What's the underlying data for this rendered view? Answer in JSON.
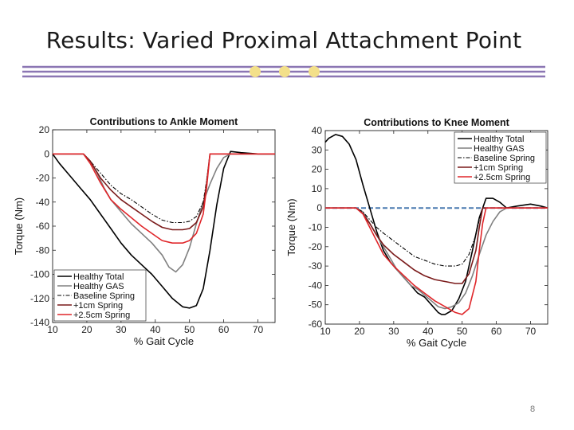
{
  "slide": {
    "title": "Results: Varied Proximal Attachment Point",
    "page_number": "8"
  },
  "colors": {
    "divider_line": "#8b76b3",
    "divider_dot": "#f3e08a",
    "healthy_total": "#000000",
    "healthy_gas": "#808080",
    "baseline_spring": "#000000",
    "spring_1cm": "#7a1a1a",
    "spring_2_5cm": "#e0262a",
    "zero_line": "#4a7ab0"
  },
  "chart_data": [
    {
      "type": "line",
      "title": "Contributions to Ankle Moment",
      "xlabel": "% Gait Cycle",
      "ylabel": "Torque (Nm)",
      "xlim": [
        10,
        75
      ],
      "ylim": [
        -140,
        20
      ],
      "xticks": [
        10,
        20,
        30,
        40,
        50,
        60,
        70
      ],
      "yticks": [
        20,
        0,
        -20,
        -40,
        -60,
        -80,
        -100,
        -120,
        -140
      ],
      "legend_position": "bottom-left",
      "grid": false,
      "series": [
        {
          "name": "Healthy Total",
          "style": "solid",
          "color_key": "healthy_total",
          "points": [
            [
              10,
              0
            ],
            [
              12,
              -8
            ],
            [
              15,
              -18
            ],
            [
              18,
              -28
            ],
            [
              21,
              -38
            ],
            [
              24,
              -50
            ],
            [
              27,
              -62
            ],
            [
              30,
              -74
            ],
            [
              33,
              -84
            ],
            [
              36,
              -92
            ],
            [
              39,
              -100
            ],
            [
              42,
              -110
            ],
            [
              45,
              -120
            ],
            [
              48,
              -127
            ],
            [
              50,
              -128
            ],
            [
              52,
              -126
            ],
            [
              54,
              -112
            ],
            [
              56,
              -80
            ],
            [
              58,
              -42
            ],
            [
              60,
              -12
            ],
            [
              62,
              2
            ],
            [
              65,
              1
            ],
            [
              70,
              0
            ],
            [
              75,
              0
            ]
          ]
        },
        {
          "name": "Healthy GAS",
          "style": "solid",
          "color_key": "healthy_gas",
          "points": [
            [
              10,
              0
            ],
            [
              19,
              0
            ],
            [
              21,
              -6
            ],
            [
              23,
              -16
            ],
            [
              25,
              -28
            ],
            [
              27,
              -38
            ],
            [
              30,
              -48
            ],
            [
              33,
              -58
            ],
            [
              36,
              -66
            ],
            [
              39,
              -74
            ],
            [
              42,
              -84
            ],
            [
              44,
              -94
            ],
            [
              46,
              -98
            ],
            [
              48,
              -92
            ],
            [
              50,
              -78
            ],
            [
              52,
              -58
            ],
            [
              54,
              -40
            ],
            [
              56,
              -25
            ],
            [
              58,
              -12
            ],
            [
              60,
              -3
            ],
            [
              62,
              0
            ],
            [
              75,
              0
            ]
          ]
        },
        {
          "name": "Baseline Spring",
          "style": "dashdot",
          "color_key": "baseline_spring",
          "points": [
            [
              10,
              0
            ],
            [
              19,
              0
            ],
            [
              21,
              -6
            ],
            [
              24,
              -16
            ],
            [
              27,
              -26
            ],
            [
              30,
              -33
            ],
            [
              33,
              -38
            ],
            [
              36,
              -44
            ],
            [
              39,
              -50
            ],
            [
              42,
              -55
            ],
            [
              45,
              -57
            ],
            [
              48,
              -57
            ],
            [
              50,
              -56
            ],
            [
              52,
              -52
            ],
            [
              54,
              -40
            ],
            [
              55,
              -22
            ],
            [
              56,
              0
            ],
            [
              75,
              0
            ]
          ]
        },
        {
          "name": "+1cm Spring",
          "style": "solid",
          "color_key": "spring_1cm",
          "points": [
            [
              10,
              0
            ],
            [
              19,
              0
            ],
            [
              21,
              -6
            ],
            [
              24,
              -20
            ],
            [
              27,
              -30
            ],
            [
              30,
              -38
            ],
            [
              33,
              -44
            ],
            [
              36,
              -50
            ],
            [
              39,
              -56
            ],
            [
              42,
              -61
            ],
            [
              45,
              -63
            ],
            [
              48,
              -63
            ],
            [
              50,
              -62
            ],
            [
              52,
              -57
            ],
            [
              54,
              -44
            ],
            [
              55,
              -24
            ],
            [
              56,
              0
            ],
            [
              75,
              0
            ]
          ]
        },
        {
          "name": "+2.5cm Spring",
          "style": "solid",
          "color_key": "spring_2_5cm",
          "points": [
            [
              10,
              0
            ],
            [
              19,
              0
            ],
            [
              21,
              -8
            ],
            [
              24,
              -24
            ],
            [
              27,
              -38
            ],
            [
              30,
              -46
            ],
            [
              33,
              -53
            ],
            [
              36,
              -60
            ],
            [
              39,
              -66
            ],
            [
              42,
              -72
            ],
            [
              45,
              -74
            ],
            [
              48,
              -74
            ],
            [
              50,
              -72
            ],
            [
              52,
              -66
            ],
            [
              54,
              -50
            ],
            [
              55,
              -28
            ],
            [
              56,
              0
            ],
            [
              75,
              0
            ]
          ]
        }
      ]
    },
    {
      "type": "line",
      "title": "Contributions to Knee Moment",
      "xlabel": "% Gait Cycle",
      "ylabel": "Torque (Nm)",
      "xlim": [
        10,
        75
      ],
      "ylim": [
        -60,
        40
      ],
      "xticks": [
        10,
        20,
        30,
        40,
        50,
        60,
        70
      ],
      "yticks": [
        40,
        30,
        20,
        10,
        0,
        -10,
        -20,
        -30,
        -40,
        -50,
        -60
      ],
      "legend_position": "top-right",
      "grid": false,
      "reference_line_y": 0,
      "series": [
        {
          "name": "Healthy Total",
          "style": "solid",
          "color_key": "healthy_total",
          "points": [
            [
              10,
              34
            ],
            [
              11,
              36
            ],
            [
              13,
              38
            ],
            [
              15,
              37
            ],
            [
              17,
              33
            ],
            [
              19,
              25
            ],
            [
              21,
              12
            ],
            [
              23,
              0
            ],
            [
              25,
              -12
            ],
            [
              27,
              -22
            ],
            [
              29,
              -28
            ],
            [
              31,
              -32
            ],
            [
              33,
              -36
            ],
            [
              35,
              -40
            ],
            [
              37,
              -44
            ],
            [
              39,
              -46
            ],
            [
              41,
              -50
            ],
            [
              43,
              -54
            ],
            [
              44,
              -55
            ],
            [
              45,
              -55
            ],
            [
              47,
              -53
            ],
            [
              49,
              -47
            ],
            [
              51,
              -38
            ],
            [
              53,
              -22
            ],
            [
              55,
              -5
            ],
            [
              57,
              5
            ],
            [
              59,
              5
            ],
            [
              61,
              3
            ],
            [
              63,
              0
            ],
            [
              66,
              1
            ],
            [
              70,
              2
            ],
            [
              73,
              1
            ],
            [
              75,
              0
            ]
          ]
        },
        {
          "name": "Healthy GAS",
          "style": "solid",
          "color_key": "healthy_gas",
          "points": [
            [
              10,
              0
            ],
            [
              19,
              0
            ],
            [
              21,
              -2
            ],
            [
              23,
              -8
            ],
            [
              25,
              -14
            ],
            [
              27,
              -20
            ],
            [
              29,
              -26
            ],
            [
              31,
              -32
            ],
            [
              33,
              -36
            ],
            [
              35,
              -40
            ],
            [
              37,
              -42
            ],
            [
              39,
              -45
            ],
            [
              41,
              -48
            ],
            [
              43,
              -51
            ],
            [
              45,
              -52
            ],
            [
              47,
              -51
            ],
            [
              49,
              -49
            ],
            [
              51,
              -44
            ],
            [
              53,
              -35
            ],
            [
              55,
              -24
            ],
            [
              57,
              -14
            ],
            [
              59,
              -7
            ],
            [
              61,
              -2
            ],
            [
              63,
              0
            ],
            [
              75,
              0
            ]
          ]
        },
        {
          "name": "Baseline Spring",
          "style": "dashdot",
          "color_key": "baseline_spring",
          "points": [
            [
              10,
              0
            ],
            [
              19,
              0
            ],
            [
              21,
              -2
            ],
            [
              23,
              -6
            ],
            [
              25,
              -10
            ],
            [
              27,
              -13
            ],
            [
              30,
              -17
            ],
            [
              33,
              -21
            ],
            [
              36,
              -25
            ],
            [
              39,
              -27
            ],
            [
              42,
              -29
            ],
            [
              45,
              -30
            ],
            [
              48,
              -30
            ],
            [
              50,
              -29
            ],
            [
              52,
              -24
            ],
            [
              54,
              -14
            ],
            [
              55,
              -6
            ],
            [
              56,
              0
            ],
            [
              75,
              0
            ]
          ]
        },
        {
          "name": "+1cm Spring",
          "style": "solid",
          "color_key": "spring_1cm",
          "points": [
            [
              10,
              0
            ],
            [
              19,
              0
            ],
            [
              21,
              -3
            ],
            [
              23,
              -8
            ],
            [
              25,
              -14
            ],
            [
              27,
              -19
            ],
            [
              30,
              -24
            ],
            [
              33,
              -28
            ],
            [
              36,
              -32
            ],
            [
              39,
              -35
            ],
            [
              42,
              -37
            ],
            [
              45,
              -38
            ],
            [
              48,
              -39
            ],
            [
              50,
              -39
            ],
            [
              52,
              -34
            ],
            [
              54,
              -22
            ],
            [
              55,
              -10
            ],
            [
              56,
              0
            ],
            [
              75,
              0
            ]
          ]
        },
        {
          "name": "+2.5cm Spring",
          "style": "solid",
          "color_key": "spring_2_5cm",
          "points": [
            [
              10,
              0
            ],
            [
              19,
              0
            ],
            [
              21,
              -3
            ],
            [
              23,
              -10
            ],
            [
              25,
              -17
            ],
            [
              27,
              -24
            ],
            [
              30,
              -30
            ],
            [
              33,
              -35
            ],
            [
              36,
              -40
            ],
            [
              39,
              -44
            ],
            [
              42,
              -48
            ],
            [
              45,
              -51
            ],
            [
              48,
              -54
            ],
            [
              50,
              -55
            ],
            [
              52,
              -52
            ],
            [
              54,
              -38
            ],
            [
              55,
              -22
            ],
            [
              56,
              -8
            ],
            [
              57,
              0
            ],
            [
              75,
              0
            ]
          ]
        }
      ]
    }
  ]
}
